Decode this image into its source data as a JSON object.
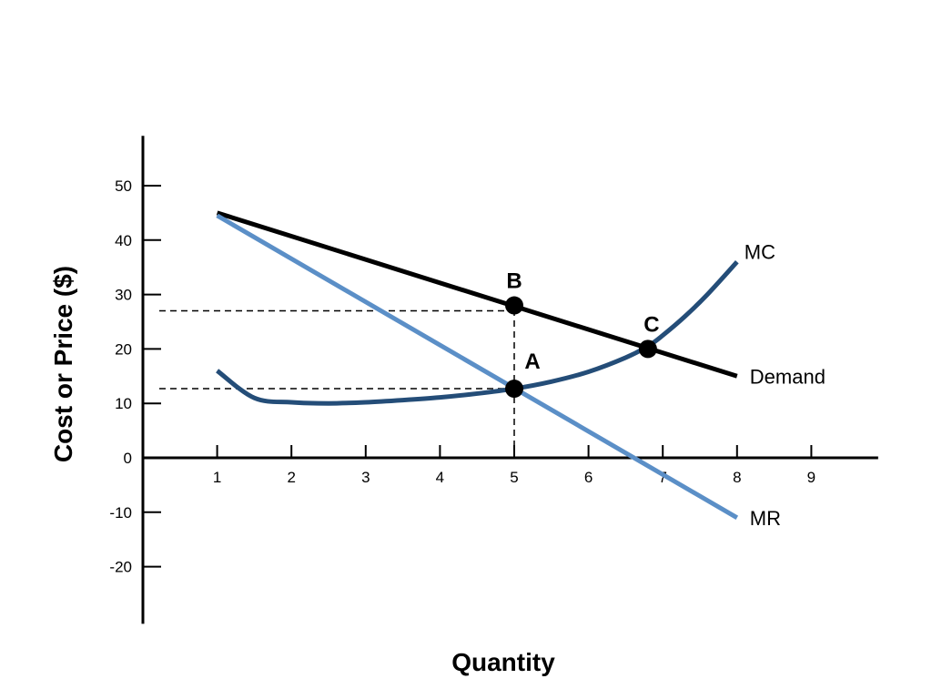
{
  "chart_data": {
    "type": "line",
    "xlabel": "Quantity",
    "ylabel": "Cost or Price ($)",
    "xlim": [
      0,
      9.9
    ],
    "ylim": [
      -30,
      60
    ],
    "x_ticks": [
      1,
      2,
      3,
      4,
      5,
      6,
      7,
      8,
      9
    ],
    "y_ticks": [
      50,
      40,
      30,
      20,
      10,
      0,
      -10,
      -20
    ],
    "grid": false,
    "legend": "none",
    "series": [
      {
        "name": "Demand",
        "color": "#000000",
        "x": [
          1,
          8
        ],
        "y": [
          45,
          15
        ]
      },
      {
        "name": "MR",
        "color": "#5b8fc7",
        "x": [
          1,
          8
        ],
        "y": [
          44.5,
          -11
        ]
      },
      {
        "name": "MC",
        "color": "#244d78",
        "x": [
          1,
          1.5,
          2,
          2.5,
          3,
          3.5,
          4,
          4.5,
          5,
          5.5,
          6,
          6.5,
          6.8,
          7,
          7.3,
          7.6,
          8
        ],
        "y": [
          16,
          11,
          10.2,
          10,
          10.2,
          10.6,
          11.1,
          11.8,
          12.7,
          14,
          15.8,
          18.4,
          20.5,
          22.5,
          26,
          30,
          36
        ]
      }
    ],
    "points": [
      {
        "label": "B",
        "x": 5,
        "y": 28
      },
      {
        "label": "A",
        "x": 5,
        "y": 12.7
      },
      {
        "label": "C",
        "x": 6.8,
        "y": 20
      }
    ],
    "reference_lines": [
      {
        "type": "horizontal",
        "y": 27,
        "x_to": 5
      },
      {
        "type": "horizontal",
        "y": 12.7,
        "x_to": 5
      },
      {
        "type": "vertical",
        "x": 5,
        "y_from": 0,
        "y_to": 28
      }
    ]
  }
}
